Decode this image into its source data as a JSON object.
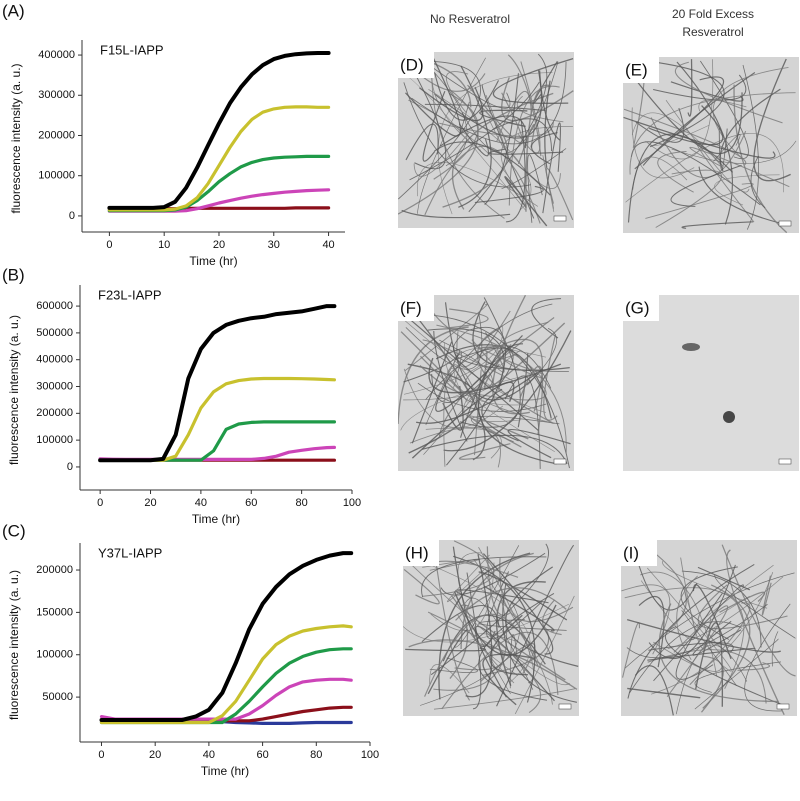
{
  "chart_data": [
    {
      "type": "line",
      "panel_label": "(A)",
      "title": "F15L-IAPP",
      "xlabel": "Time (hr)",
      "ylabel": "fluorescence intensity (a. u.)",
      "x": [
        0,
        2,
        4,
        6,
        8,
        10,
        12,
        14,
        16,
        18,
        20,
        22,
        24,
        26,
        28,
        30,
        32,
        34,
        36,
        38,
        40
      ],
      "series": [
        {
          "color": "#8b0f1a",
          "values": [
            18000,
            18000,
            18000,
            18000,
            18000,
            18000,
            18000,
            19000,
            19000,
            19000,
            19000,
            19000,
            19000,
            19000,
            19000,
            19000,
            19000,
            20000,
            20000,
            20000,
            20000
          ]
        },
        {
          "color": "#cc44b8",
          "values": [
            12000,
            12000,
            12000,
            12000,
            12000,
            12000,
            12000,
            13000,
            18000,
            25000,
            32000,
            38000,
            44000,
            49000,
            53000,
            56000,
            59000,
            61000,
            63000,
            64000,
            65000
          ]
        },
        {
          "color": "#1f9a48",
          "values": [
            13000,
            13000,
            13000,
            13000,
            13000,
            13000,
            15000,
            22000,
            38000,
            60000,
            85000,
            105000,
            122000,
            133000,
            140000,
            144000,
            146000,
            147000,
            148000,
            148000,
            148000
          ]
        },
        {
          "color": "#c8c12e",
          "values": [
            15000,
            15000,
            15000,
            15000,
            15000,
            15000,
            17000,
            25000,
            45000,
            80000,
            125000,
            170000,
            210000,
            240000,
            258000,
            266000,
            270000,
            271000,
            271000,
            270000,
            270000
          ]
        },
        {
          "color": "#000000",
          "values": [
            20000,
            20000,
            20000,
            20000,
            20000,
            22000,
            35000,
            70000,
            120000,
            175000,
            230000,
            280000,
            320000,
            352000,
            375000,
            390000,
            398000,
            402000,
            404000,
            405000,
            405000
          ]
        }
      ],
      "xlim": [
        -5,
        43
      ],
      "xticks": [
        0,
        10,
        20,
        30,
        40
      ],
      "ylim": [
        -40000,
        425000
      ],
      "yticks": [
        0,
        100000,
        200000,
        300000,
        400000
      ]
    },
    {
      "type": "line",
      "panel_label": "(B)",
      "title": "F23L-IAPP",
      "xlabel": "Time (hr)",
      "ylabel": "fluorescence intensity (a. u.)",
      "x": [
        0,
        5,
        10,
        15,
        20,
        25,
        30,
        35,
        40,
        45,
        50,
        55,
        60,
        65,
        70,
        75,
        80,
        85,
        90,
        93
      ],
      "series": [
        {
          "color": "#8b0f1a",
          "values": [
            25000,
            25000,
            25000,
            25000,
            25000,
            25000,
            25000,
            25000,
            25000,
            25000,
            25000,
            25000,
            25000,
            25000,
            25000,
            25000,
            25000,
            25000,
            25000,
            25000
          ]
        },
        {
          "color": "#cc44b8",
          "values": [
            30000,
            29000,
            28000,
            28000,
            28000,
            28000,
            28000,
            28000,
            28000,
            28000,
            28000,
            28000,
            28000,
            32000,
            40000,
            55000,
            62000,
            68000,
            72000,
            73000
          ]
        },
        {
          "color": "#1f9a48",
          "values": [
            25000,
            25000,
            25000,
            25000,
            25000,
            25000,
            25000,
            25000,
            25000,
            60000,
            140000,
            160000,
            166000,
            168000,
            168000,
            168000,
            168000,
            168000,
            168000,
            168000
          ]
        },
        {
          "color": "#c8c12e",
          "values": [
            25000,
            25000,
            25000,
            25000,
            25000,
            25000,
            40000,
            120000,
            220000,
            280000,
            310000,
            322000,
            328000,
            330000,
            330000,
            330000,
            329000,
            328000,
            326000,
            325000
          ]
        },
        {
          "color": "#000000",
          "values": [
            25000,
            25000,
            25000,
            25000,
            25000,
            30000,
            120000,
            330000,
            440000,
            500000,
            530000,
            545000,
            555000,
            560000,
            570000,
            575000,
            580000,
            590000,
            600000,
            600000
          ]
        }
      ],
      "xlim": [
        -8,
        100
      ],
      "xticks": [
        0,
        20,
        40,
        60,
        80,
        100
      ],
      "ylim": [
        -86000,
        660000
      ],
      "yticks": [
        0,
        100000,
        200000,
        300000,
        400000,
        500000,
        600000
      ]
    },
    {
      "type": "line",
      "panel_label": "(C)",
      "title": "Y37L-IAPP",
      "xlabel": "Time (hr)",
      "ylabel": "fluorescence intensity (a. u.)",
      "x": [
        0,
        5,
        10,
        15,
        20,
        25,
        30,
        35,
        40,
        45,
        50,
        55,
        60,
        65,
        70,
        75,
        80,
        85,
        90,
        93
      ],
      "series": [
        {
          "color": "#2a3a9a",
          "values": [
            22000,
            22000,
            22000,
            22000,
            22000,
            22000,
            22000,
            22000,
            22000,
            21000,
            20000,
            19500,
            19000,
            19000,
            19000,
            19500,
            20000,
            20000,
            20000,
            20000
          ]
        },
        {
          "color": "#8b0f1a",
          "values": [
            22000,
            22000,
            22000,
            22000,
            22000,
            22000,
            22000,
            22000,
            22000,
            22000,
            22000,
            22000,
            24000,
            27000,
            30000,
            33000,
            35000,
            37000,
            38000,
            38000
          ]
        },
        {
          "color": "#cc44b8",
          "values": [
            27000,
            24000,
            24000,
            24000,
            24000,
            24000,
            24000,
            24000,
            24000,
            24000,
            24000,
            30000,
            40000,
            52000,
            62000,
            68000,
            70000,
            71000,
            71000,
            70000
          ]
        },
        {
          "color": "#1f9a48",
          "values": [
            20000,
            20000,
            20000,
            20000,
            20000,
            20000,
            20000,
            20000,
            20000,
            20000,
            30000,
            45000,
            62000,
            78000,
            90000,
            98000,
            103000,
            106000,
            107000,
            107000
          ]
        },
        {
          "color": "#c8c12e",
          "values": [
            20000,
            20000,
            20000,
            20000,
            20000,
            20000,
            20000,
            20000,
            20000,
            28000,
            45000,
            70000,
            95000,
            112000,
            122000,
            128000,
            131000,
            133000,
            134000,
            133000
          ]
        },
        {
          "color": "#000000",
          "values": [
            23000,
            23000,
            23000,
            23000,
            23000,
            23000,
            23000,
            27000,
            35000,
            55000,
            90000,
            130000,
            160000,
            180000,
            195000,
            205000,
            212000,
            217000,
            220000,
            220000
          ]
        }
      ],
      "xlim": [
        -8,
        100
      ],
      "xticks": [
        0,
        20,
        40,
        60,
        80,
        100
      ],
      "ylim": [
        -3000,
        226000
      ],
      "yticks": [
        50000,
        100000,
        150000,
        200000
      ]
    }
  ],
  "column_headers": [
    [
      "No Resveratrol"
    ],
    [
      "20 Fold Excess",
      "Resveratrol"
    ]
  ],
  "images": [
    {
      "label": "(D)"
    },
    {
      "label": "(E)"
    },
    {
      "label": "(F)"
    },
    {
      "label": "(G)"
    },
    {
      "label": "(H)"
    },
    {
      "label": "(I)"
    }
  ]
}
